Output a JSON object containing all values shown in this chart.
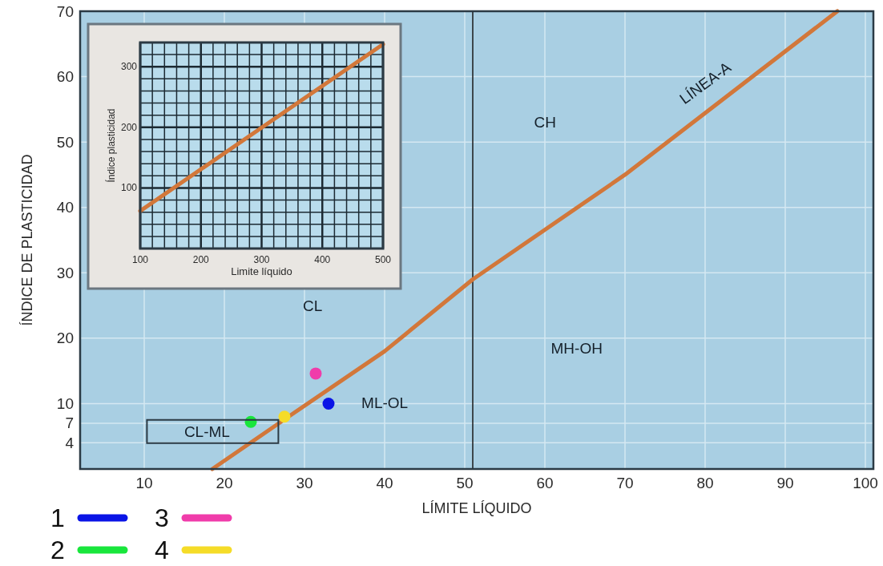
{
  "chart_data": [
    {
      "type": "scatter",
      "xlabel": "LÍMITE LÍQUIDO",
      "ylabel": "ÍNDICE DE PLASTICIDAD",
      "xlim": [
        2,
        101
      ],
      "ylim": [
        0,
        70
      ],
      "xticks": [
        10,
        20,
        30,
        40,
        50,
        60,
        70,
        80,
        90,
        100
      ],
      "yticks": [
        4,
        7,
        10,
        20,
        30,
        40,
        50,
        60,
        70
      ],
      "grid": true,
      "legend": "bottom left",
      "series": [
        {
          "type": "line",
          "marker": "none",
          "color": "#d2773a",
          "x": [
            18.5,
            28,
            40,
            51,
            70,
            96.5
          ],
          "values": [
            0,
            8,
            18,
            29,
            45,
            70
          ]
        },
        {
          "name": "1",
          "marker": "circle",
          "color": "#0a14e6",
          "x": [
            33
          ],
          "values": [
            10
          ]
        },
        {
          "name": "2",
          "marker": "circle",
          "color": "#19e63c",
          "x": [
            23.3
          ],
          "values": [
            7.2
          ]
        },
        {
          "name": "3",
          "marker": "circle",
          "color": "#f03caa",
          "x": [
            31.4
          ],
          "values": [
            14.6
          ]
        },
        {
          "name": "4",
          "marker": "circle",
          "color": "#f5dc28",
          "x": [
            27.5
          ],
          "values": [
            8
          ]
        }
      ],
      "ref_lines": [
        {
          "axis": "x",
          "value": 51,
          "color": "#1a1a1a"
        }
      ],
      "annotations": [
        "CH",
        "CL",
        "MH-OH",
        "ML-OL",
        "LÍNEA-A",
        "CL-ML"
      ]
    },
    {
      "type": "line",
      "xlabel": "Limite líquido",
      "ylabel": "Índice plasticidad",
      "xlim": [
        100,
        500
      ],
      "ylim": [
        0,
        340
      ],
      "xticks": [
        100,
        {
          "value": 120,
          "label": null
        },
        {
          "value": 140,
          "label": null
        },
        {
          "value": 160,
          "label": null
        },
        {
          "value": 180,
          "label": null
        },
        200,
        {
          "value": 220,
          "label": null
        },
        {
          "value": 240,
          "label": null
        },
        {
          "value": 260,
          "label": null
        },
        {
          "value": 280,
          "label": null
        },
        300,
        {
          "value": 320,
          "label": null
        },
        {
          "value": 340,
          "label": null
        },
        {
          "value": 360,
          "label": null
        },
        {
          "value": 380,
          "label": null
        },
        400,
        {
          "value": 420,
          "label": null
        },
        {
          "value": 440,
          "label": null
        },
        {
          "value": 460,
          "label": null
        },
        {
          "value": 480,
          "label": null
        },
        500
      ],
      "yticks": [
        {
          "value": 20,
          "label": null
        },
        {
          "value": 40,
          "label": null
        },
        {
          "value": 60,
          "label": null
        },
        {
          "value": 80,
          "label": null
        },
        100,
        {
          "value": 120,
          "label": null
        },
        {
          "value": 140,
          "label": null
        },
        {
          "value": 160,
          "label": null
        },
        {
          "value": 180,
          "label": null
        },
        200,
        {
          "value": 220,
          "label": null
        },
        {
          "value": 240,
          "label": null
        },
        {
          "value": 260,
          "label": null
        },
        {
          "value": 280,
          "label": null
        },
        300,
        {
          "value": 320,
          "label": null
        }
      ],
      "grid": true,
      "series": [
        {
          "color": "#d2773a",
          "x": [
            100,
            500
          ],
          "values": [
            62,
            337
          ]
        }
      ]
    }
  ]
}
